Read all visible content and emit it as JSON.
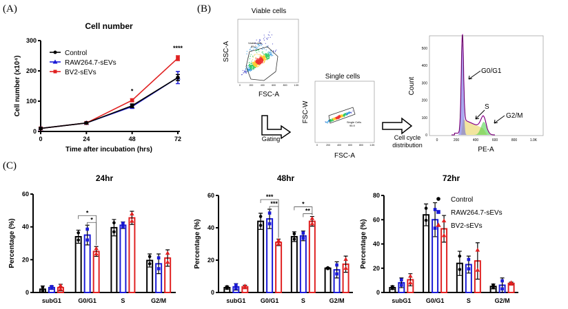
{
  "panels": {
    "a": "(A)",
    "b": "(B)",
    "c": "(C)"
  },
  "colors": {
    "control": "#000000",
    "raw": "#1a1ad6",
    "bv2": "#e02020"
  },
  "legend": [
    "Control",
    "RAW264.7-sEVs",
    "BV2-sEVs"
  ],
  "gating": {
    "viable_title": "Viable cells",
    "viable_y": "SSC-A",
    "viable_x": "FSC-A",
    "viable_gate": "Viable cells",
    "viable_pct": "85.0",
    "single_title": "Single cells",
    "single_y": "FSC-W",
    "single_x": "FSC-A",
    "single_gate": "Single Cells",
    "single_pct": "95.9",
    "gating_label": "Gating",
    "cycle_label_1": "Cell cycle",
    "cycle_label_2": "distribution",
    "hist_y": "Count",
    "hist_x": "PE-A",
    "phases": [
      "G0/G1",
      "S",
      "G2/M"
    ],
    "hist_xticks": [
      "0",
      "200",
      "400",
      "600",
      "800",
      "1.0K"
    ],
    "hist_yticks": [
      "0",
      "100",
      "200",
      "300",
      "400",
      "500"
    ],
    "scatter_ticks": [
      "0",
      "200",
      "400",
      "600",
      "800",
      "1.0K"
    ]
  },
  "chart_data": [
    {
      "type": "line",
      "title": "Cell number",
      "xlabel": "Time after incubation (hrs)",
      "ylabel": "Cell number (x10⁴)",
      "x": [
        0,
        24,
        48,
        72
      ],
      "xticks": [
        "0",
        "24",
        "48",
        "72"
      ],
      "yticks": [
        "0",
        "100",
        "200",
        "300"
      ],
      "ylim": [
        0,
        300
      ],
      "legend_position": "top-left",
      "series": [
        {
          "name": "Control",
          "marker": "circle",
          "values": [
            10,
            28,
            85,
            178
          ],
          "err": [
            3,
            3,
            6,
            10
          ]
        },
        {
          "name": "RAW264.7-sEVs",
          "marker": "triangle",
          "values": [
            10,
            28,
            82,
            178
          ],
          "err": [
            3,
            3,
            6,
            20
          ]
        },
        {
          "name": "BV2-sEVs",
          "marker": "square",
          "values": [
            10,
            28,
            103,
            242
          ],
          "err": [
            3,
            3,
            5,
            8
          ]
        }
      ],
      "annotations": [
        {
          "x": 48,
          "text": "*"
        },
        {
          "x": 72,
          "text": "****"
        }
      ]
    },
    {
      "type": "bar",
      "title": "24hr",
      "ylabel": "Percentage (%)",
      "categories": [
        "subG1",
        "G0/G1",
        "S",
        "G2/M"
      ],
      "ylim": [
        0,
        60
      ],
      "yticks": [
        "0",
        "20",
        "40",
        "60"
      ],
      "series": [
        {
          "name": "Control",
          "values": [
            2,
            34,
            39.5,
            19.5
          ],
          "sd": [
            2,
            4,
            5,
            4
          ]
        },
        {
          "name": "RAW264.7-sEVs",
          "values": [
            3,
            35,
            41,
            17.5
          ],
          "sd": [
            1,
            6,
            2,
            6
          ]
        },
        {
          "name": "BV2-sEVs",
          "values": [
            3,
            25,
            45.5,
            21
          ],
          "sd": [
            2,
            3,
            4,
            5
          ]
        }
      ],
      "significance": [
        {
          "category": "G0/G1",
          "pair": [
            0,
            2
          ],
          "text": "*"
        },
        {
          "category": "G0/G1",
          "pair": [
            1,
            2
          ],
          "text": "*"
        }
      ]
    },
    {
      "type": "bar",
      "title": "48hr",
      "ylabel": "Percentage (%)",
      "categories": [
        "subG1",
        "G0/G1",
        "S",
        "G2/M"
      ],
      "ylim": [
        0,
        60
      ],
      "yticks": [
        "0",
        "20",
        "40",
        "60"
      ],
      "series": [
        {
          "name": "Control",
          "values": [
            3,
            44,
            34.5,
            15
          ],
          "sd": [
            1,
            5,
            3,
            0.5
          ]
        },
        {
          "name": "RAW264.7-sEVs",
          "values": [
            3.5,
            45.5,
            35,
            14
          ],
          "sd": [
            2,
            6,
            3,
            5
          ]
        },
        {
          "name": "BV2-sEVs",
          "values": [
            3.5,
            31,
            44,
            17.5
          ],
          "sd": [
            1,
            2,
            3,
            5
          ]
        }
      ],
      "significance": [
        {
          "category": "G0/G1",
          "pair": [
            0,
            2
          ],
          "text": "***"
        },
        {
          "category": "G0/G1",
          "pair": [
            1,
            2
          ],
          "text": "***"
        },
        {
          "category": "S",
          "pair": [
            0,
            2
          ],
          "text": "*"
        },
        {
          "category": "S",
          "pair": [
            1,
            2
          ],
          "text": "**"
        }
      ]
    },
    {
      "type": "bar",
      "title": "72hr",
      "ylabel": "Percentage (%)",
      "categories": [
        "subG1",
        "G0/G1",
        "S",
        "G2/M"
      ],
      "ylim": [
        0,
        80
      ],
      "yticks": [
        "0",
        "20",
        "40",
        "60",
        "80"
      ],
      "legend_position": "top-right",
      "series": [
        {
          "name": "Control",
          "values": [
            4,
            64,
            24,
            5
          ],
          "sd": [
            1.5,
            9,
            10,
            2
          ]
        },
        {
          "name": "RAW264.7-sEVs",
          "values": [
            8,
            60,
            23,
            6
          ],
          "sd": [
            4,
            14,
            7,
            6
          ]
        },
        {
          "name": "BV2-sEVs",
          "values": [
            10.5,
            52.5,
            26,
            7.5
          ],
          "sd": [
            5,
            11,
            15,
            1
          ]
        }
      ],
      "significance": []
    }
  ]
}
